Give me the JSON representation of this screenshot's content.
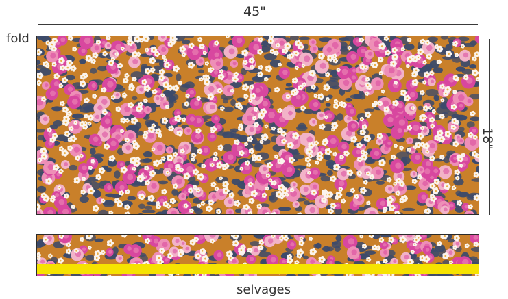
{
  "dimensions": {
    "width_label": "45\"",
    "height_label": "18\""
  },
  "labels": {
    "fold": "fold",
    "selvages": "selvages"
  },
  "fabric": {
    "pattern": "floral print",
    "colors": {
      "background": "#c9802a",
      "navy": "#3c4a6b",
      "magenta": "#d8479f",
      "pink": "#ee8fb7",
      "blush": "#f2b3c8",
      "white": "#fbf4ee",
      "selvage": "#f6e300"
    }
  }
}
